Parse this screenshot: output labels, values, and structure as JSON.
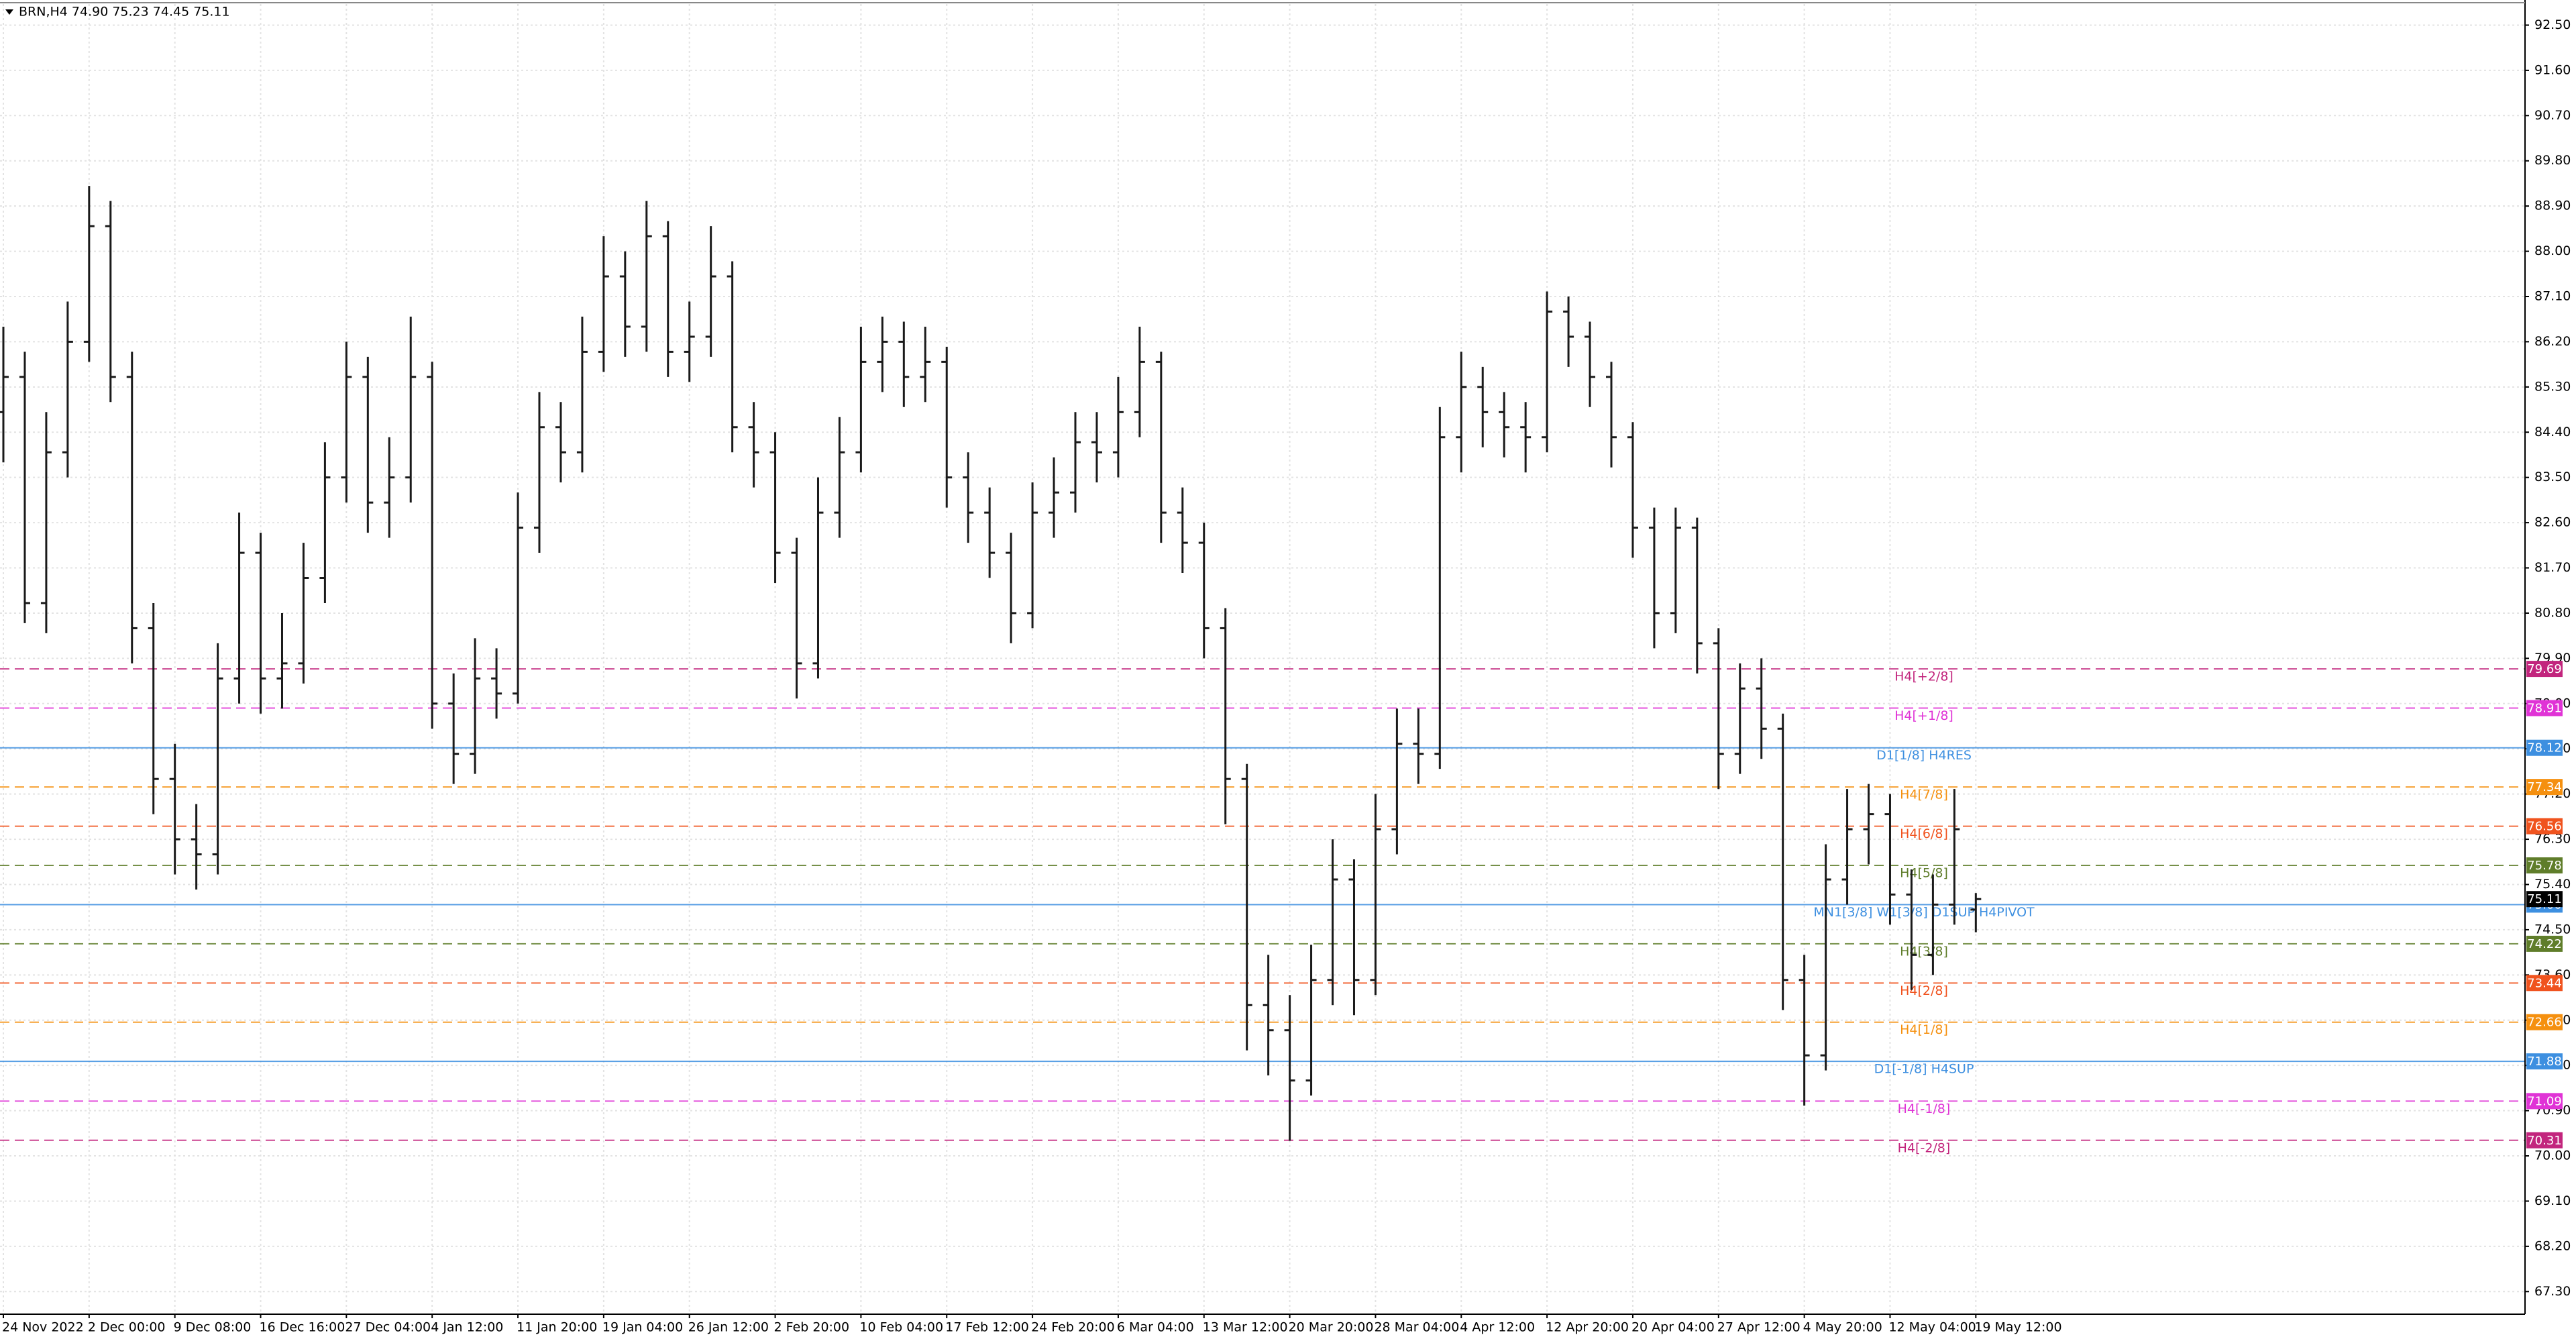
{
  "chart_data": {
    "type": "ohlc",
    "title": "BRN,H4  74.90 75.23 74.45 75.11",
    "color": "#1a1a1a",
    "grid": true,
    "categories": [
      "24 Nov 2022",
      null,
      null,
      null,
      "2 Dec 00:00",
      null,
      null,
      null,
      "9 Dec 08:00",
      null,
      null,
      null,
      "16 Dec 16:00",
      null,
      null,
      null,
      "27 Dec 04:00",
      null,
      null,
      null,
      "4 Jan 12:00",
      null,
      null,
      null,
      "11 Jan 20:00",
      null,
      null,
      null,
      "19 Jan 04:00",
      null,
      null,
      null,
      "26 Jan 12:00",
      null,
      null,
      null,
      "2 Feb 20:00",
      null,
      null,
      null,
      "10 Feb 04:00",
      null,
      null,
      null,
      "17 Feb 12:00",
      null,
      null,
      null,
      "24 Feb 20:00",
      null,
      null,
      null,
      "6 Mar 04:00",
      null,
      null,
      null,
      "13 Mar 12:00",
      null,
      null,
      null,
      "20 Mar 20:00",
      null,
      null,
      null,
      "28 Mar 04:00",
      null,
      null,
      null,
      "4 Apr 12:00",
      null,
      null,
      null,
      "12 Apr 20:00",
      null,
      null,
      null,
      "20 Apr 04:00",
      null,
      null,
      null,
      "27 Apr 12:00",
      null,
      null,
      null,
      "4 May 20:00",
      null,
      null,
      null,
      "12 May 04:00",
      null,
      null,
      null,
      "19 May 12:00"
    ],
    "open": [
      84.8,
      85.5,
      81.0,
      84.0,
      86.2,
      88.5,
      85.5,
      80.5,
      77.5,
      76.3,
      76.0,
      79.5,
      82.0,
      79.5,
      79.8,
      81.5,
      83.5,
      85.5,
      83.0,
      83.5,
      85.5,
      79.0,
      78.0,
      79.5,
      79.2,
      82.5,
      84.5,
      84.0,
      86.0,
      87.5,
      86.5,
      88.3,
      86.0,
      86.3,
      87.5,
      84.5,
      84.0,
      82.0,
      79.8,
      82.8,
      84.0,
      85.8,
      86.2,
      85.5,
      85.8,
      83.5,
      82.8,
      82.0,
      80.8,
      82.8,
      83.2,
      84.2,
      84.0,
      84.8,
      85.8,
      82.8,
      82.2,
      80.5,
      77.5,
      73.0,
      72.5,
      71.5,
      73.5,
      75.5,
      73.5,
      76.5,
      78.2,
      78.0,
      84.3,
      85.3,
      84.8,
      84.5,
      84.3,
      86.8,
      86.3,
      85.5,
      84.3,
      82.5,
      80.8,
      82.5,
      80.2,
      78.0,
      79.3,
      78.5,
      73.5,
      72.0,
      75.5,
      76.5,
      76.8,
      75.2,
      74.0,
      75.0,
      74.9
    ],
    "high": [
      86.5,
      86.0,
      84.8,
      87.0,
      89.3,
      89.0,
      86.0,
      81.0,
      78.2,
      77.0,
      80.2,
      82.8,
      82.4,
      80.8,
      82.2,
      84.2,
      86.2,
      85.9,
      84.3,
      86.7,
      85.8,
      79.6,
      80.3,
      80.1,
      83.2,
      85.2,
      85.0,
      86.7,
      88.3,
      88.0,
      89.0,
      88.6,
      87.0,
      88.5,
      87.8,
      85.0,
      84.4,
      82.3,
      83.5,
      84.7,
      86.5,
      86.7,
      86.6,
      86.5,
      86.1,
      84.0,
      83.3,
      82.4,
      83.4,
      83.9,
      84.8,
      84.8,
      85.5,
      86.5,
      86.0,
      83.3,
      82.6,
      80.9,
      77.8,
      74.0,
      73.2,
      74.2,
      76.3,
      75.9,
      77.2,
      78.9,
      78.9,
      84.9,
      86.0,
      85.7,
      85.2,
      85.0,
      87.2,
      87.1,
      86.6,
      85.8,
      84.6,
      82.9,
      82.9,
      82.7,
      80.5,
      79.8,
      79.9,
      78.8,
      74.0,
      76.2,
      77.3,
      77.4,
      77.2,
      75.7,
      75.6,
      77.3,
      75.23
    ],
    "low": [
      83.8,
      80.6,
      80.4,
      83.5,
      85.8,
      85.0,
      79.8,
      76.8,
      75.6,
      75.3,
      75.6,
      79.0,
      78.8,
      78.9,
      79.4,
      81.0,
      83.0,
      82.4,
      82.3,
      83.0,
      78.5,
      77.4,
      77.6,
      78.7,
      79.0,
      82.0,
      83.4,
      83.6,
      85.6,
      85.9,
      86.0,
      85.5,
      85.4,
      85.9,
      84.0,
      83.3,
      81.4,
      79.1,
      79.5,
      82.3,
      83.6,
      85.2,
      84.9,
      85.0,
      82.9,
      82.2,
      81.5,
      80.2,
      80.5,
      82.3,
      82.8,
      83.4,
      83.5,
      84.3,
      82.2,
      81.6,
      79.9,
      76.6,
      72.1,
      71.6,
      70.3,
      71.2,
      73.0,
      72.8,
      73.2,
      76.0,
      77.4,
      77.7,
      83.6,
      84.1,
      83.9,
      83.6,
      84.0,
      85.7,
      84.9,
      83.7,
      81.9,
      80.1,
      80.4,
      79.6,
      77.3,
      77.6,
      77.9,
      72.9,
      71.0,
      71.7,
      75.0,
      75.8,
      74.6,
      73.3,
      73.6,
      74.6,
      74.45
    ],
    "close": [
      85.5,
      81.0,
      84.0,
      86.2,
      88.5,
      85.5,
      80.5,
      77.5,
      76.3,
      76.0,
      79.5,
      82.0,
      79.5,
      79.8,
      81.5,
      83.5,
      85.5,
      83.0,
      83.5,
      85.5,
      79.0,
      78.0,
      79.5,
      79.2,
      82.5,
      84.5,
      84.0,
      86.0,
      87.5,
      86.5,
      88.3,
      86.0,
      86.3,
      87.5,
      84.5,
      84.0,
      82.0,
      79.8,
      82.8,
      84.0,
      85.8,
      86.2,
      85.5,
      85.8,
      83.5,
      82.8,
      82.0,
      80.8,
      82.8,
      83.2,
      84.2,
      84.0,
      84.8,
      85.8,
      82.8,
      82.2,
      80.5,
      77.5,
      73.0,
      72.5,
      71.5,
      73.5,
      75.5,
      73.5,
      76.5,
      78.2,
      78.0,
      84.3,
      85.3,
      84.8,
      84.5,
      84.3,
      86.8,
      86.3,
      85.5,
      84.3,
      82.5,
      80.8,
      82.5,
      80.2,
      78.0,
      79.3,
      78.5,
      73.5,
      72.0,
      75.5,
      76.5,
      76.8,
      75.2,
      74.0,
      75.0,
      76.5,
      75.11
    ],
    "ylim": [
      66.85,
      93.0
    ],
    "yticks": [
      {
        "value": 67.3,
        "label": "67.30"
      },
      {
        "value": 68.2,
        "label": "68.20"
      },
      {
        "value": 69.1,
        "label": "69.10"
      },
      {
        "value": 70,
        "label": "70.00"
      },
      {
        "value": 70.9,
        "label": "70.90"
      },
      {
        "value": 71.8,
        "label": "71.80"
      },
      {
        "value": 72.7,
        "label": "72.70"
      },
      {
        "value": 73.6,
        "label": "73.60"
      },
      {
        "value": 74.5,
        "label": "74.50"
      },
      {
        "value": 75.4,
        "label": "75.40"
      },
      {
        "value": 76.3,
        "label": "76.30"
      },
      {
        "value": 77.2,
        "label": "77.20"
      },
      {
        "value": 78.1,
        "label": "78.10"
      },
      {
        "value": 79,
        "label": "79.00"
      },
      {
        "value": 79.9,
        "label": "79.90"
      },
      {
        "value": 80.8,
        "label": "80.80"
      },
      {
        "value": 81.7,
        "label": "81.70"
      },
      {
        "value": 82.6,
        "label": "82.60"
      },
      {
        "value": 83.5,
        "label": "83.50"
      },
      {
        "value": 84.4,
        "label": "84.40"
      },
      {
        "value": 85.3,
        "label": "85.30"
      },
      {
        "value": 86.2,
        "label": "86.20"
      },
      {
        "value": 87.1,
        "label": "87.10"
      },
      {
        "value": 88,
        "label": "88.00"
      },
      {
        "value": 88.9,
        "label": "88.90"
      },
      {
        "value": 89.8,
        "label": "89.80"
      },
      {
        "value": 90.7,
        "label": "90.70"
      },
      {
        "value": 91.6,
        "label": "91.60"
      },
      {
        "value": 92.5,
        "label": "92.50"
      }
    ],
    "levels": [
      {
        "name": "H4[+2/8]",
        "value": 79.69,
        "color": "#c2257d",
        "dashed": true
      },
      {
        "name": "H4[+1/8]",
        "value": 78.91,
        "color": "#e033d6",
        "dashed": true
      },
      {
        "name": "D1[1/8] H4RES",
        "value": 78.12,
        "color": "#3d8fe0",
        "dashed": false
      },
      {
        "name": "H4[7/8]",
        "value": 77.34,
        "color": "#f5900f",
        "dashed": true
      },
      {
        "name": "H4[6/8]",
        "value": 76.56,
        "color": "#f0531e",
        "dashed": true
      },
      {
        "name": "H4[5/8]",
        "value": 75.78,
        "color": "#5f7d2a",
        "dashed": true
      },
      {
        "name": "MN1[3/8] W1[3/8] D1SUP H4PIVOT",
        "value": 75,
        "value_label": "75.00",
        "color": "#3d8fe0",
        "dashed": false
      },
      {
        "name": "H4[3/8]",
        "value": 74.22,
        "color": "#5f7d2a",
        "dashed": true
      },
      {
        "name": "H4[2/8]",
        "value": 73.44,
        "color": "#f0531e",
        "dashed": true
      },
      {
        "name": "H4[1/8]",
        "value": 72.66,
        "color": "#f5900f",
        "dashed": true
      },
      {
        "name": "D1[-1/8] H4SUP",
        "value": 71.88,
        "color": "#3d8fe0",
        "dashed": false
      },
      {
        "name": "H4[-1/8]",
        "value": 71.09,
        "color": "#e033d6",
        "dashed": true
      },
      {
        "name": "H4[-2/8]",
        "value": 70.31,
        "color": "#c2257d",
        "dashed": true
      }
    ]
  }
}
